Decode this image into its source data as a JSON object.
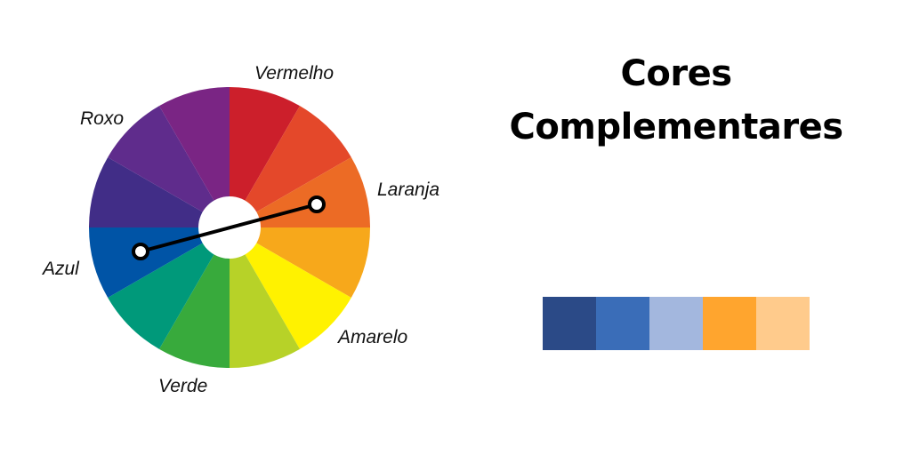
{
  "title": {
    "line1": "Cores",
    "line2": "Complementares"
  },
  "wheel": {
    "segments": [
      {
        "name": "vermelho",
        "color": "#cc1f2b"
      },
      {
        "name": "vermelho-laranja",
        "color": "#e4482a"
      },
      {
        "name": "laranja",
        "color": "#ec6b25"
      },
      {
        "name": "laranja-amarelo",
        "color": "#f7a81b"
      },
      {
        "name": "amarelo",
        "color": "#fff200"
      },
      {
        "name": "amarelo-verde",
        "color": "#b7d228"
      },
      {
        "name": "verde",
        "color": "#38aa3c"
      },
      {
        "name": "azul-verde",
        "color": "#00997a"
      },
      {
        "name": "azul",
        "color": "#0054a6"
      },
      {
        "name": "azul-violeta",
        "color": "#412d87"
      },
      {
        "name": "violeta",
        "color": "#5f2c8c"
      },
      {
        "name": "vermelho-violeta",
        "color": "#7a2584"
      }
    ],
    "labels": {
      "vermelho": "Vermelho",
      "laranja": "Laranja",
      "amarelo": "Amarelo",
      "verde": "Verde",
      "azul": "Azul",
      "roxo": "Roxo"
    },
    "complement_pair": [
      "Laranja",
      "Azul"
    ],
    "connector_color": "#000000"
  },
  "palette": {
    "swatches": [
      "#2b4a87",
      "#3a6db8",
      "#a3b7de",
      "#ffa52e",
      "#ffcb8c"
    ]
  }
}
